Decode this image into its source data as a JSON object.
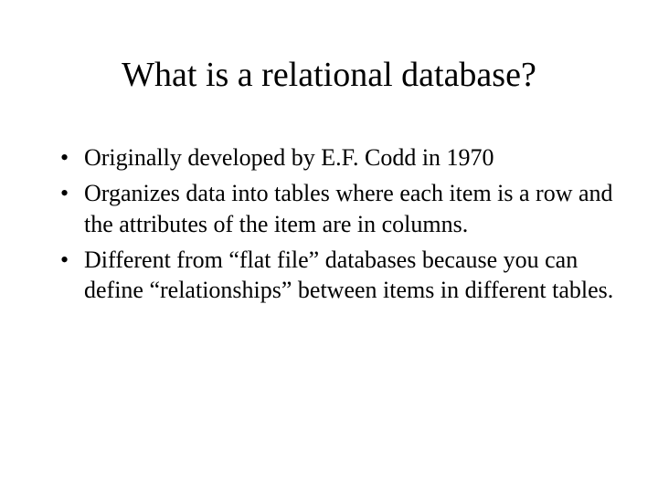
{
  "slide": {
    "title": "What is a relational database?",
    "bullets": [
      "Originally developed by E.F. Codd in 1970",
      "Organizes data into tables where each item is a row and the attributes of the item are in columns.",
      "Different from “flat file” databases because you can define “relationships” between items in different tables."
    ],
    "colors": {
      "background": "#ffffff",
      "text": "#000000"
    },
    "typography": {
      "title_fontsize": 38,
      "body_fontsize": 26,
      "font_family": "Times New Roman, serif"
    }
  }
}
